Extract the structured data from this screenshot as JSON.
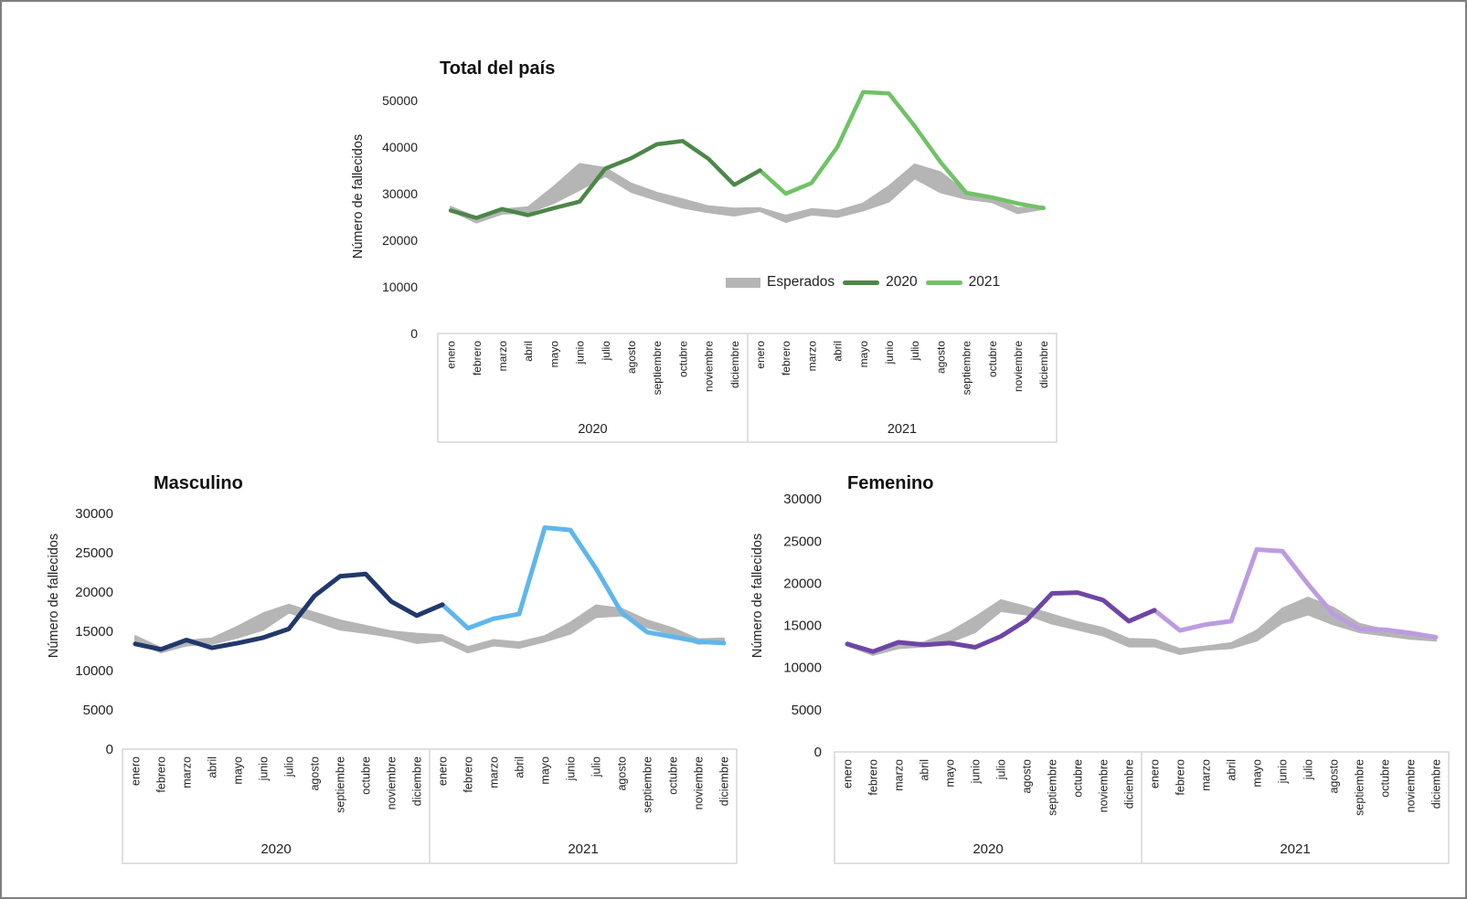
{
  "page": {
    "background": "#FFFFFF",
    "border_color": "#7F7F7F",
    "text_color": "#222222",
    "axis_box_color": "#D6D6D6"
  },
  "months": [
    "enero",
    "febrero",
    "marzo",
    "abril",
    "mayo",
    "junio",
    "julio",
    "agosto",
    "septiembre",
    "octubre",
    "noviembre",
    "diciembre"
  ],
  "legend": {
    "items": [
      {
        "label": "Esperados",
        "type": "band",
        "color": "#B5B5B5"
      },
      {
        "label": "2020",
        "type": "line",
        "color": "#4C8748"
      },
      {
        "label": "2021",
        "type": "line",
        "color": "#70C266"
      }
    ]
  },
  "chart_data": [
    {
      "type": "line",
      "title": "Total del país",
      "ylabel": "Número de fallecidos",
      "year_groups": [
        "2020",
        "2021"
      ],
      "yticks": [
        0,
        10000,
        20000,
        30000,
        40000,
        50000
      ],
      "ylim": [
        0,
        52500
      ],
      "grid": false,
      "legend_position": "inside-right",
      "colors": {
        "esperados": "#B5B5B5",
        "y2020": "#4C8748",
        "y2021": "#70C266"
      },
      "series": {
        "esperados_upper": [
          27200,
          24900,
          26600,
          27100,
          31500,
          36400,
          35500,
          32200,
          30200,
          28800,
          27300,
          26800,
          26900,
          25300,
          26700,
          26300,
          27900,
          31600,
          36300,
          34600,
          30300,
          29400,
          26900,
          27300
        ],
        "esperados_lower": [
          26400,
          23800,
          25700,
          25900,
          28000,
          30800,
          33800,
          30400,
          28600,
          27000,
          26000,
          25300,
          26300,
          23900,
          25500,
          25000,
          26400,
          28300,
          33300,
          30300,
          28900,
          28200,
          25800,
          26700
        ],
        "y2020": [
          26400,
          24800,
          26700,
          25400,
          26900,
          28300,
          35400,
          37600,
          40600,
          41300,
          37500,
          31900
        ],
        "y2021": [
          35000,
          30000,
          32300,
          40000,
          51800,
          51500,
          44500,
          36800,
          30200,
          29200,
          27900,
          26900
        ]
      }
    },
    {
      "type": "line",
      "title": "Masculino",
      "ylabel": "Número de fallecidos",
      "year_groups": [
        "2020",
        "2021"
      ],
      "yticks": [
        0,
        5000,
        10000,
        15000,
        20000,
        25000,
        30000
      ],
      "ylim": [
        0,
        31000
      ],
      "grid": false,
      "legend_position": "none",
      "colors": {
        "esperados": "#B5B5B5",
        "y2020": "#21386A",
        "y2021": "#5FB6EC"
      },
      "series": {
        "esperados_upper": [
          14400,
          12900,
          13800,
          14100,
          15600,
          17300,
          18400,
          17400,
          16400,
          15700,
          15000,
          14700,
          14500,
          13000,
          13900,
          13600,
          14400,
          16100,
          18300,
          17900,
          16400,
          15400,
          14000,
          14100
        ],
        "esperados_lower": [
          13700,
          12300,
          13200,
          13400,
          14200,
          15200,
          17400,
          16300,
          15200,
          14800,
          14300,
          13500,
          13800,
          12300,
          13200,
          12900,
          13700,
          14700,
          16800,
          17000,
          15500,
          14600,
          13400,
          13600
        ],
        "y2020": [
          13400,
          12700,
          13900,
          12900,
          13500,
          14200,
          15300,
          19500,
          22000,
          22300,
          18800,
          17000
        ],
        "y2021": [
          18400,
          15400,
          16600,
          17200,
          28200,
          27900,
          23000,
          17400,
          14900,
          14300,
          13700,
          13500
        ]
      }
    },
    {
      "type": "line",
      "title": "Femenino",
      "ylabel": "Número de fallecidos",
      "year_groups": [
        "2020",
        "2021"
      ],
      "yticks": [
        0,
        5000,
        10000,
        15000,
        20000,
        25000,
        30000
      ],
      "ylim": [
        0,
        31000
      ],
      "grid": false,
      "legend_position": "none",
      "colors": {
        "esperados": "#B5B5B5",
        "y2020": "#6E45A5",
        "y2021": "#BC9CE0"
      },
      "series": {
        "esperados_upper": [
          13000,
          11900,
          12700,
          13000,
          14200,
          16000,
          18000,
          17200,
          16300,
          15400,
          14700,
          13400,
          13300,
          12200,
          12500,
          12900,
          14400,
          17000,
          18300,
          17100,
          15200,
          14500,
          14000,
          13700
        ],
        "esperados_lower": [
          12600,
          11500,
          12300,
          12500,
          13000,
          14200,
          16700,
          16300,
          15200,
          14500,
          13800,
          12500,
          12500,
          11600,
          12100,
          12300,
          13200,
          15300,
          16300,
          15100,
          14200,
          13800,
          13400,
          13200
        ],
        "y2020": [
          12800,
          11900,
          13000,
          12700,
          12900,
          12400,
          13700,
          15600,
          18800,
          18900,
          18000,
          15500
        ],
        "y2021": [
          16800,
          14400,
          15100,
          15500,
          24000,
          23800,
          19900,
          16300,
          14600,
          14500,
          14100,
          13600
        ]
      }
    }
  ]
}
